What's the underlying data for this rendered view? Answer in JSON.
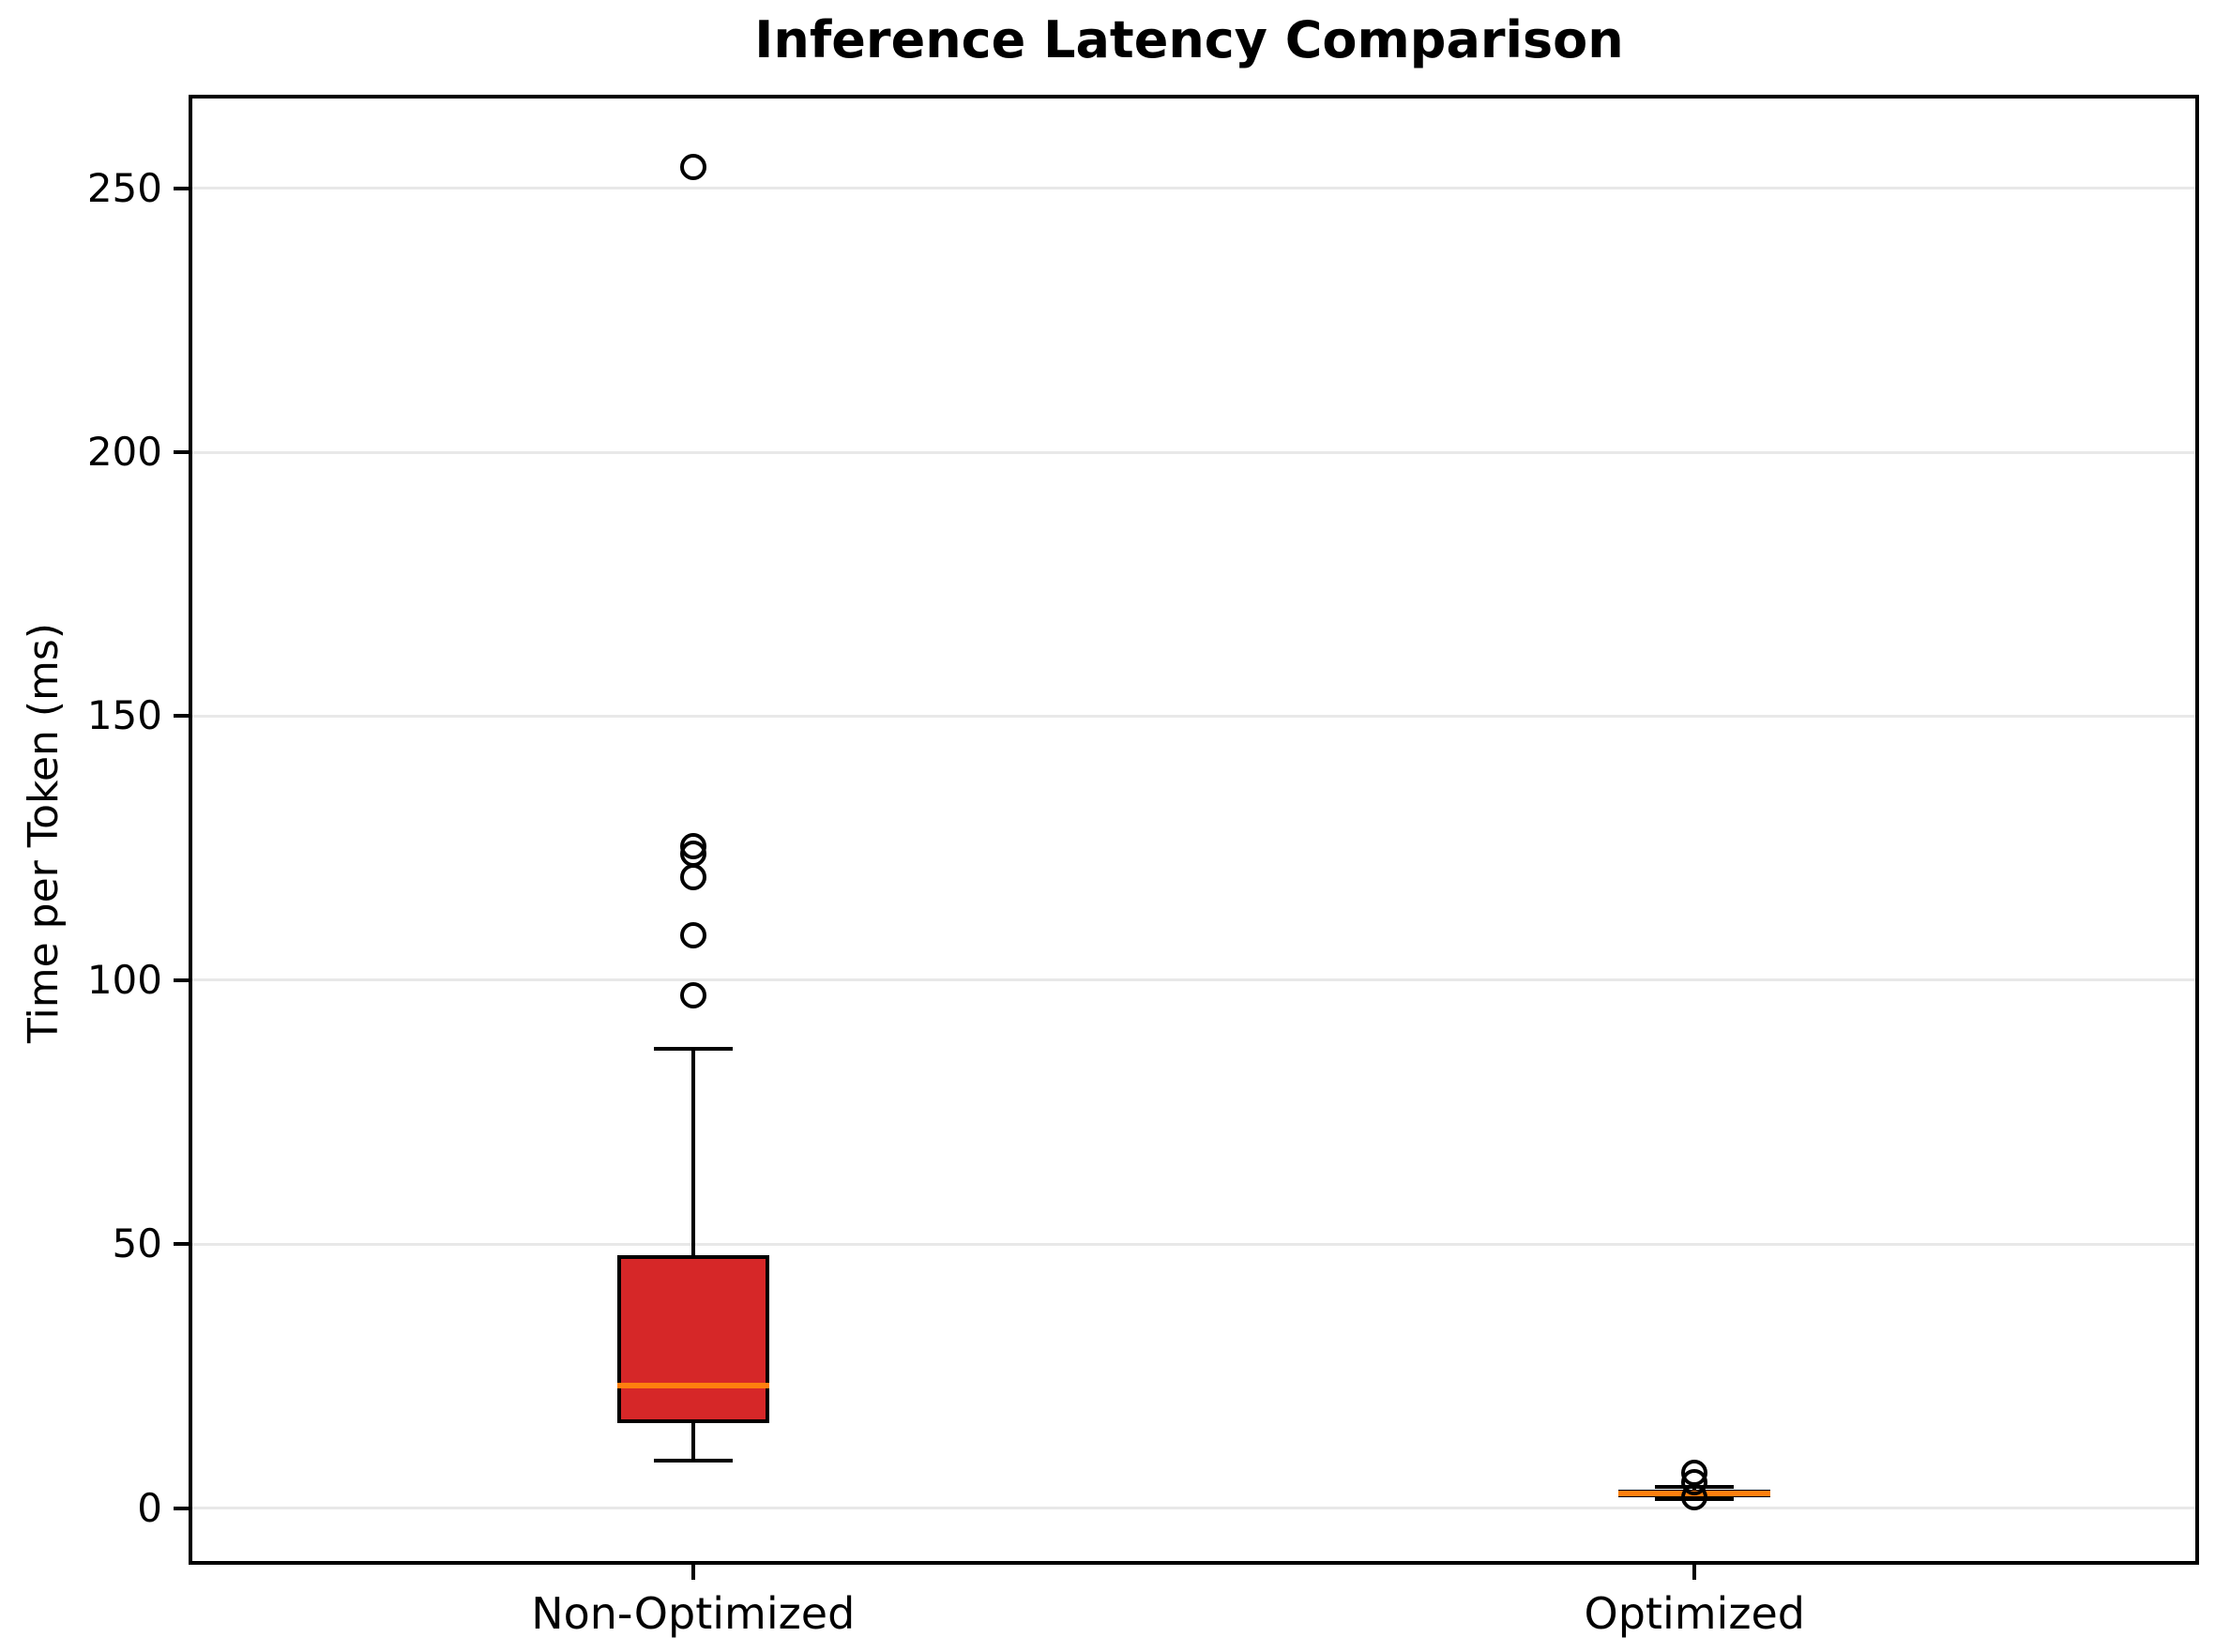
{
  "chart_data": {
    "type": "boxplot",
    "title": "Inference Latency Comparison",
    "xlabel": "",
    "ylabel": "Time per Token (ms)",
    "ylim": [
      -10,
      267
    ],
    "yticks": [
      0,
      50,
      100,
      150,
      200,
      250
    ],
    "grid": "horizontal",
    "grid_color": "#e8e8e8",
    "legend": "none",
    "categories": [
      "Non-Optimized",
      "Optimized"
    ],
    "series": [
      {
        "label": "Non-Optimized",
        "q1": 16.2,
        "median": 23.2,
        "q3": 48.0,
        "whisker_low": 9.0,
        "whisker_high": 87.0,
        "outliers": [
          97.1,
          108.6,
          119.6,
          123.9,
          125.4,
          254.1
        ],
        "box_color": "#d62728",
        "median_color": "#ff7f0e",
        "edge_color": "#000000"
      },
      {
        "label": "Optimized",
        "q1": 2.2,
        "median": 2.8,
        "q3": 3.5,
        "whisker_low": 1.8,
        "whisker_high": 4.0,
        "outliers": [
          6.7,
          4.9,
          2.1
        ],
        "box_color": "#ff7f0e",
        "median_color": "#ff7f0e",
        "edge_color": "#000000"
      }
    ]
  }
}
